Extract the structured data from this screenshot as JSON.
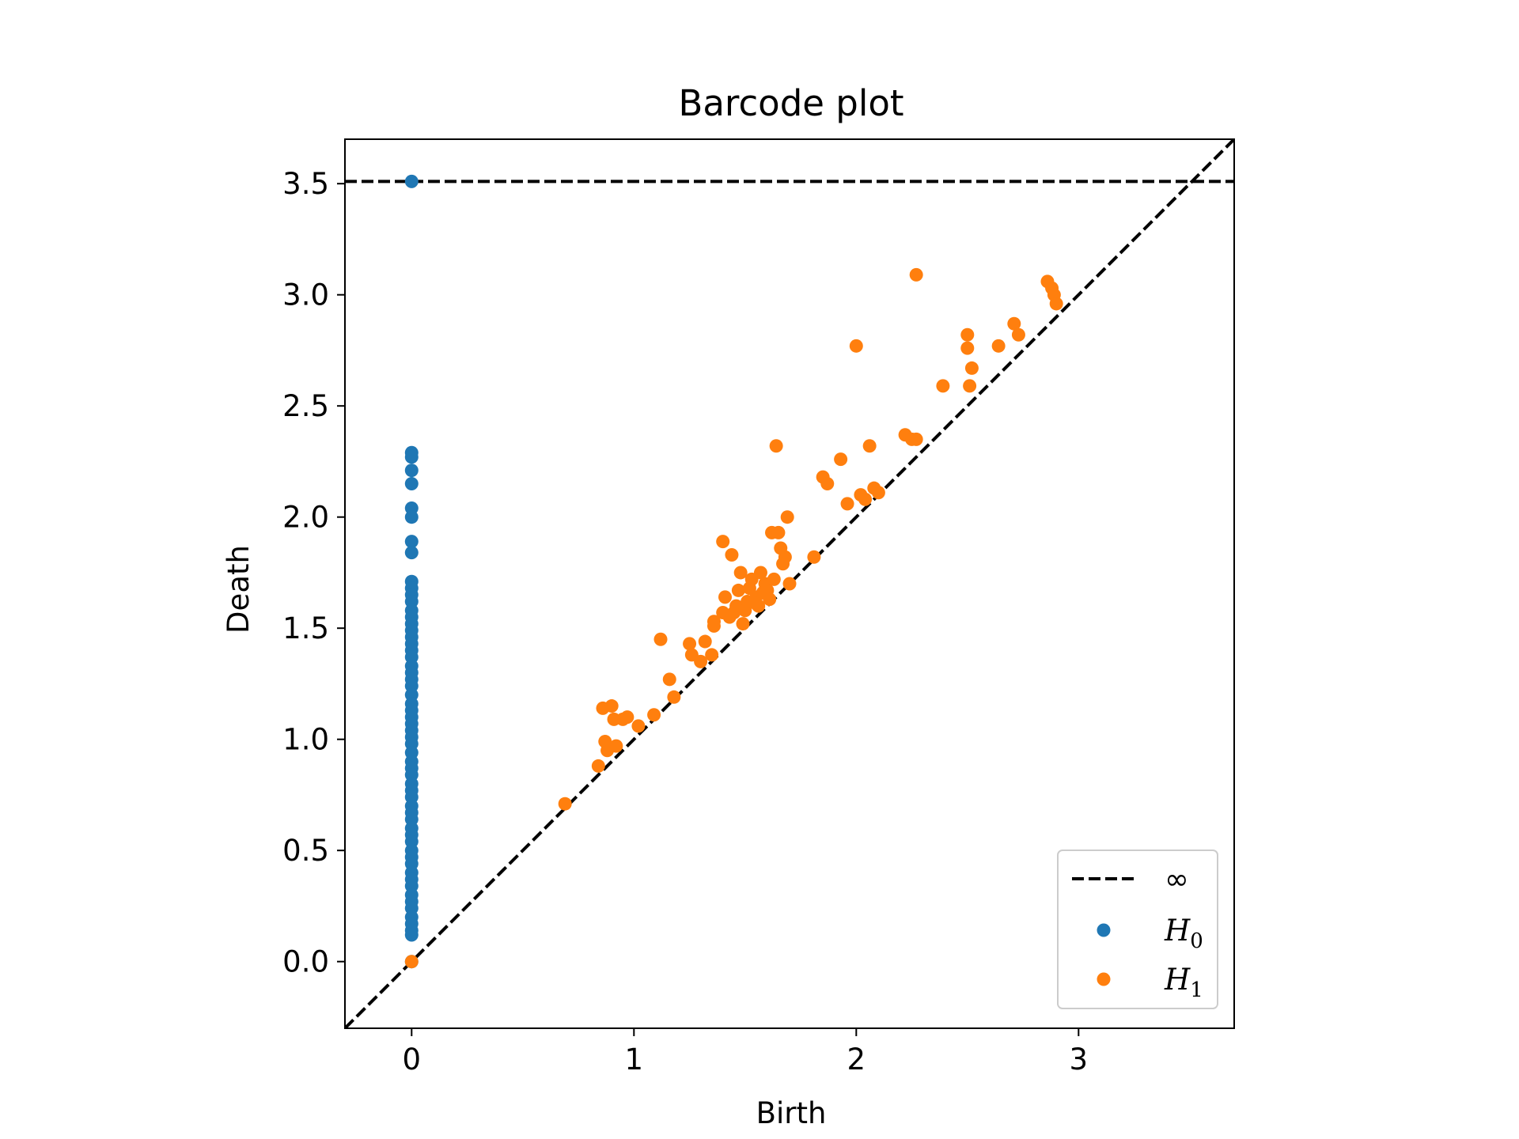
{
  "chart_data": {
    "type": "scatter",
    "title": "Barcode plot",
    "xlabel": "Birth",
    "ylabel": "Death",
    "xlim": [
      -0.3,
      3.7
    ],
    "ylim": [
      -0.3,
      3.7
    ],
    "x_ticks": [
      0,
      1,
      2,
      3
    ],
    "x_tick_labels": [
      "0",
      "1",
      "2",
      "3"
    ],
    "y_ticks": [
      0.0,
      0.5,
      1.0,
      1.5,
      2.0,
      2.5,
      3.0,
      3.5
    ],
    "y_tick_labels": [
      "0.0",
      "0.5",
      "1.0",
      "1.5",
      "2.0",
      "2.5",
      "3.0",
      "3.5"
    ],
    "infinity_level": 3.51,
    "diagonal": true,
    "legend_position": "bottom-right",
    "legend": {
      "infinity_label": "∞",
      "h0_label": "H",
      "h0_sub": "0",
      "h1_label": "H",
      "h1_sub": "1"
    },
    "colors": {
      "h0": "#1f77b4",
      "h1": "#ff7f0e",
      "reference_lines": "#000000"
    },
    "series": [
      {
        "name": "H0",
        "x": [
          0,
          0,
          0,
          0,
          0,
          0,
          0,
          0,
          0,
          0,
          0,
          0,
          0,
          0,
          0,
          0,
          0,
          0,
          0,
          0,
          0,
          0,
          0,
          0,
          0,
          0,
          0,
          0,
          0,
          0,
          0,
          0,
          0,
          0,
          0,
          0,
          0,
          0,
          0,
          0,
          0,
          0,
          0,
          0,
          0,
          0,
          0,
          0,
          0,
          0,
          0,
          0,
          0,
          0,
          0,
          0,
          0,
          0,
          0,
          0
        ],
        "y": [
          3.51,
          2.29,
          2.27,
          2.21,
          2.15,
          2.04,
          2.0,
          1.89,
          1.84,
          1.71,
          1.68,
          1.65,
          1.62,
          1.58,
          1.55,
          1.52,
          1.49,
          1.46,
          1.43,
          1.4,
          1.37,
          1.33,
          1.3,
          1.27,
          1.24,
          1.2,
          1.16,
          1.1,
          1.07,
          1.04,
          1.01,
          0.98,
          0.94,
          0.9,
          0.87,
          0.84,
          0.8,
          0.77,
          0.74,
          0.7,
          0.67,
          0.64,
          0.6,
          0.57,
          0.54,
          0.5,
          0.47,
          0.44,
          0.4,
          0.37,
          0.34,
          0.3,
          0.27,
          0.24,
          0.2,
          0.17,
          0.14,
          0.12,
          0.0,
          1.13
        ]
      },
      {
        "name": "H1",
        "x": [
          0.0,
          0.69,
          0.84,
          0.86,
          0.87,
          0.88,
          0.9,
          0.91,
          0.92,
          0.95,
          0.97,
          1.02,
          1.09,
          1.12,
          1.16,
          1.18,
          1.25,
          1.26,
          1.3,
          1.32,
          1.35,
          1.36,
          1.36,
          1.4,
          1.41,
          1.43,
          1.44,
          1.45,
          1.46,
          1.47,
          1.48,
          1.49,
          1.5,
          1.51,
          1.52,
          1.53,
          1.55,
          1.56,
          1.57,
          1.58,
          1.59,
          1.6,
          1.61,
          1.62,
          1.63,
          1.65,
          1.66,
          1.67,
          1.68,
          1.69,
          1.7,
          1.81,
          1.85,
          1.87,
          1.93,
          1.96,
          2.0,
          2.02,
          2.04,
          2.06,
          2.08,
          2.1,
          2.22,
          2.25,
          2.27,
          2.27,
          2.39,
          2.5,
          2.5,
          2.51,
          2.52,
          2.64,
          2.71,
          2.73,
          2.86,
          2.88,
          2.89,
          2.9,
          1.4,
          1.55,
          1.64
        ],
        "y": [
          0.0,
          0.71,
          0.88,
          1.14,
          0.99,
          0.95,
          1.15,
          1.09,
          0.97,
          1.09,
          1.1,
          1.06,
          1.11,
          1.45,
          1.27,
          1.19,
          1.43,
          1.38,
          1.35,
          1.44,
          1.38,
          1.53,
          1.51,
          1.89,
          1.64,
          1.55,
          1.83,
          1.57,
          1.6,
          1.67,
          1.75,
          1.52,
          1.58,
          1.62,
          1.68,
          1.72,
          1.64,
          1.6,
          1.75,
          1.66,
          1.7,
          1.67,
          1.63,
          1.93,
          1.72,
          1.93,
          1.86,
          1.79,
          1.82,
          2.0,
          1.7,
          1.82,
          2.18,
          2.15,
          2.26,
          2.06,
          2.77,
          2.1,
          2.08,
          2.32,
          2.13,
          2.11,
          2.37,
          2.35,
          2.35,
          3.09,
          2.59,
          2.82,
          2.76,
          2.59,
          2.67,
          2.77,
          2.87,
          2.82,
          3.06,
          3.03,
          3.0,
          2.96,
          1.57,
          1.61,
          2.32
        ]
      }
    ]
  }
}
